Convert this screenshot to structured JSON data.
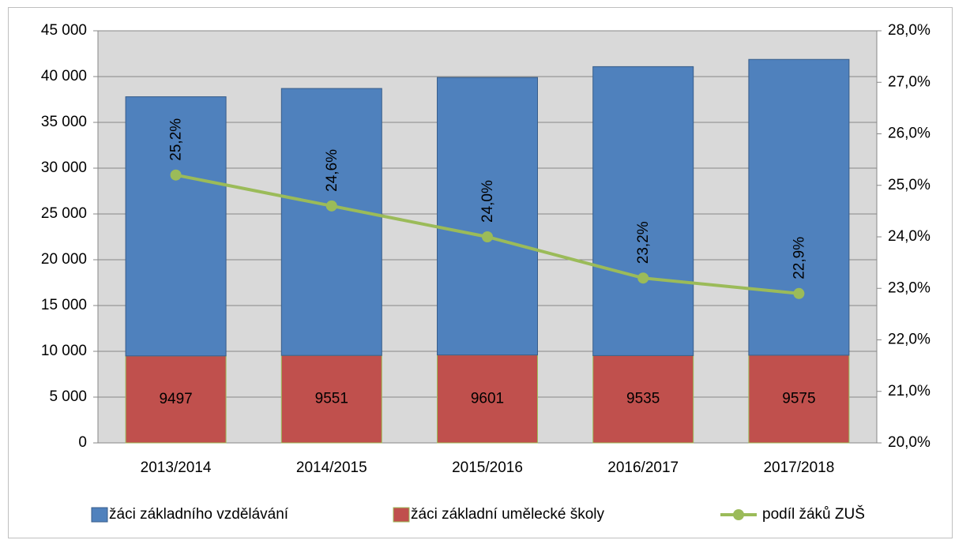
{
  "chart_data": {
    "type": "bar",
    "stacked": true,
    "categories": [
      "2013/2014",
      "2014/2015",
      "2015/2016",
      "2016/2017",
      "2017/2018"
    ],
    "series": [
      {
        "name": "žáci základní umělecké školy",
        "color": "#c0504d",
        "values": [
          9497,
          9551,
          9601,
          9535,
          9575
        ]
      },
      {
        "name": "žáci základního vzdělávání",
        "color": "#4f81bd",
        "values": [
          28300,
          29150,
          30300,
          31550,
          32300
        ]
      },
      {
        "name": "podíl žáků ZUŠ",
        "type": "line",
        "axis": "y2",
        "color": "#9bbb59",
        "values": [
          25.2,
          24.6,
          24.0,
          23.2,
          22.9
        ],
        "value_labels": [
          "25,2%",
          "24,6%",
          "24,0%",
          "23,2%",
          "22,9%"
        ]
      }
    ],
    "ylim": [
      0,
      45000
    ],
    "yticks": [
      0,
      {
        "value": 5000,
        "label": "5 000"
      },
      {
        "value": 10000,
        "label": "10 000"
      },
      {
        "value": 15000,
        "label": "15 000"
      },
      {
        "value": 20000,
        "label": "20 000"
      },
      {
        "value": 25000,
        "label": "25 000"
      },
      {
        "value": 30000,
        "label": "30 000"
      },
      {
        "value": 35000,
        "label": "35 000"
      },
      {
        "value": 40000,
        "label": "40 000"
      },
      {
        "value": 45000,
        "label": "45 000"
      }
    ],
    "y2lim": [
      20,
      28
    ],
    "y2ticks": [
      {
        "value": 20,
        "label": "20,0%"
      },
      {
        "value": 21,
        "label": "21,0%"
      },
      {
        "value": 22,
        "label": "22,0%"
      },
      {
        "value": 23,
        "label": "23,0%"
      },
      {
        "value": 24,
        "label": "24,0%"
      },
      {
        "value": 25,
        "label": "25,0%"
      },
      {
        "value": 26,
        "label": "26,0%"
      },
      {
        "value": 27,
        "label": "27,0%"
      },
      {
        "value": 28,
        "label": "28,0%"
      }
    ],
    "grid": true,
    "legend": "bottom"
  }
}
